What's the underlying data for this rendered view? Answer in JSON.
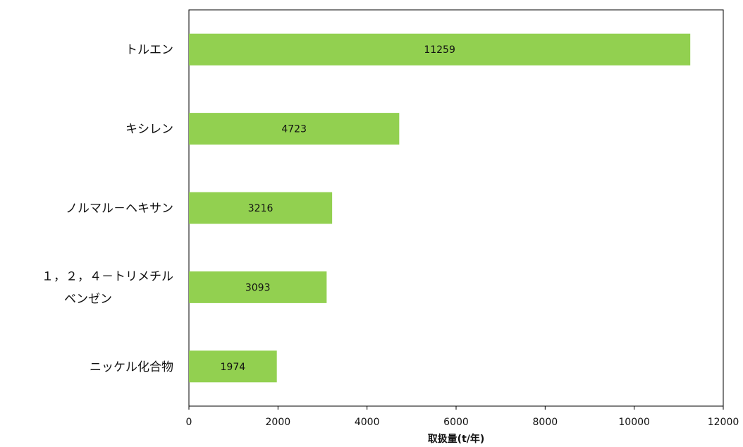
{
  "chart_data": {
    "type": "bar",
    "orientation": "horizontal",
    "categories": [
      [
        "トルエン"
      ],
      [
        "キシレン"
      ],
      [
        "ノルマル－ヘキサン"
      ],
      [
        "１，２，４－トリメチル",
        "ベンゼン"
      ],
      [
        "ニッケル化合物"
      ]
    ],
    "values": [
      11259,
      4723,
      3216,
      3093,
      1974
    ],
    "data_labels": [
      "11259",
      "4723",
      "3216",
      "3093",
      "1974"
    ],
    "xlabel": "取扱量(t/年)",
    "xlim": [
      0,
      12000
    ],
    "xticks": [
      0,
      2000,
      4000,
      6000,
      8000,
      10000,
      12000
    ],
    "xtick_labels": [
      "0",
      "2000",
      "4000",
      "6000",
      "8000",
      "10000",
      "12000"
    ],
    "grid": false,
    "legend": "none",
    "bar_color": "#92d050"
  }
}
